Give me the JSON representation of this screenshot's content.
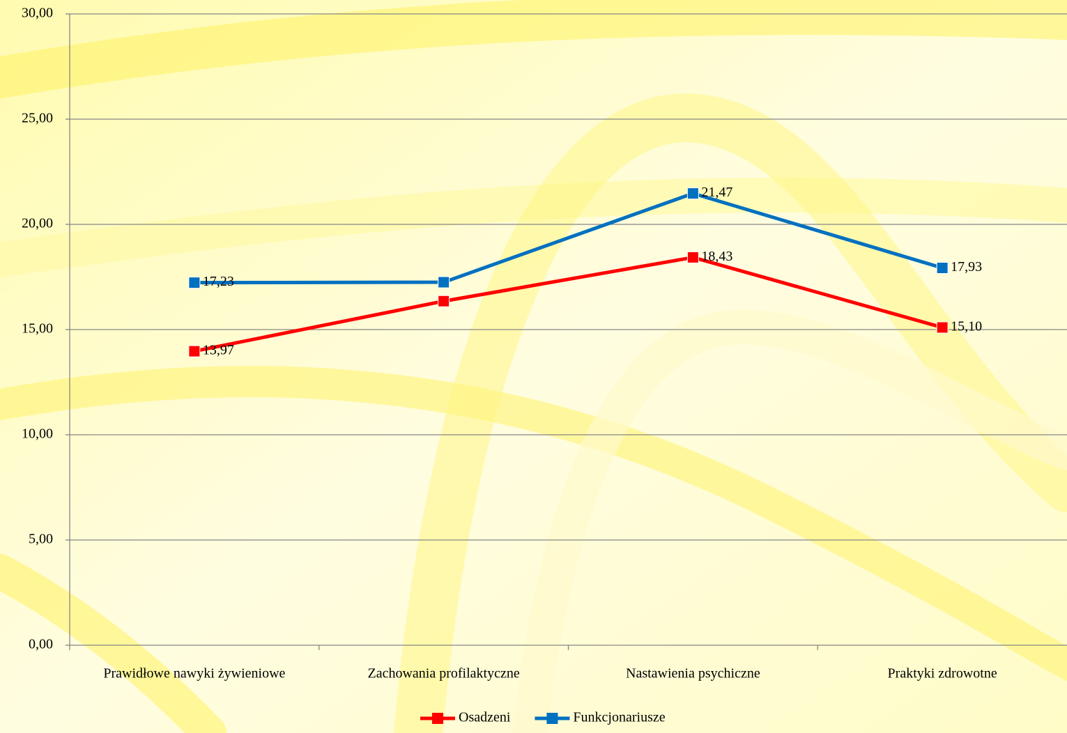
{
  "chart_data": {
    "type": "line",
    "categories": [
      "Prawidłowe nawyki żywieniowe",
      "Zachowania profilaktyczne",
      "Nastawienia psychiczne",
      "Praktyki zdrowotne"
    ],
    "series": [
      {
        "name": "Osadzeni",
        "color": "#ff0000",
        "values": [
          13.97,
          16.35,
          18.43,
          15.1
        ],
        "value_labels": [
          "13,97",
          null,
          "18,43",
          "15,10"
        ]
      },
      {
        "name": "Funkcjonariusze",
        "color": "#0070c0",
        "values": [
          17.23,
          17.25,
          21.47,
          17.93
        ],
        "value_labels": [
          "17,23",
          null,
          "21,47",
          "17,93"
        ]
      }
    ],
    "ylim": [
      0,
      30
    ],
    "yticks": [
      {
        "value": 0,
        "label": "0,00"
      },
      {
        "value": 5,
        "label": "5,00"
      },
      {
        "value": 10,
        "label": "10,00"
      },
      {
        "value": 15,
        "label": "15,00"
      },
      {
        "value": 20,
        "label": "20,00"
      },
      {
        "value": 25,
        "label": "25,00"
      },
      {
        "value": 30,
        "label": "30,00"
      }
    ],
    "grid": true,
    "legend": "bottom"
  }
}
